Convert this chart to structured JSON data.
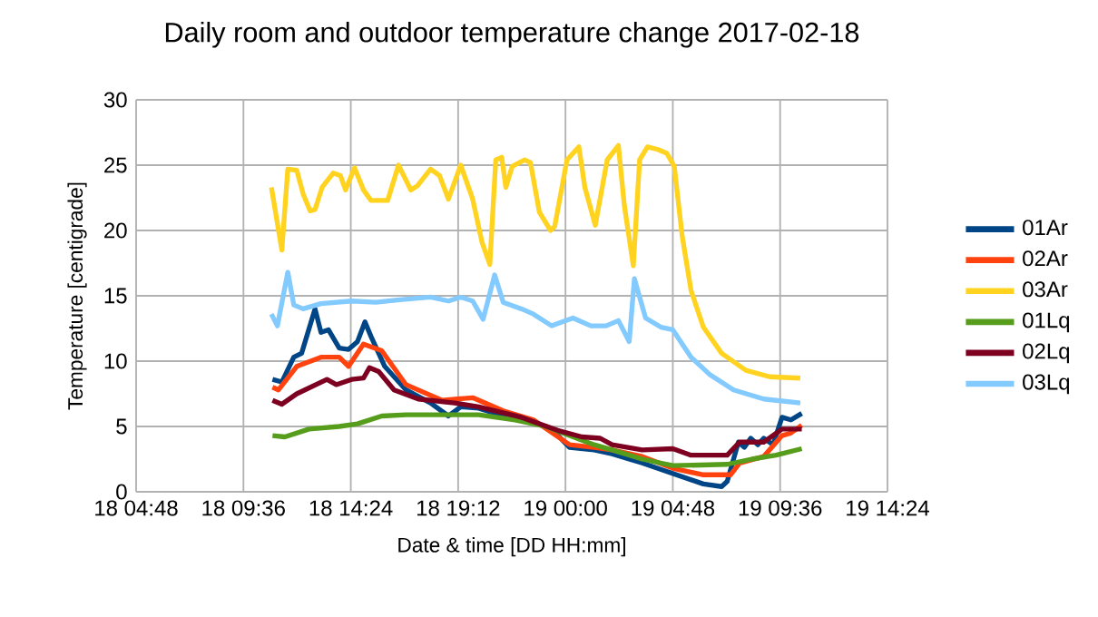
{
  "chart_data": {
    "type": "line",
    "title": "Daily room and outdoor temperature change 2017-02-18",
    "xlabel": "Date & time  [DD HH:mm]",
    "ylabel": "Temperature [centigrade]",
    "xlim": [
      "2017-02-18T04:48",
      "2017-02-19T14:24"
    ],
    "xticks": [
      {
        "value": "2017-02-18T04:48",
        "label": "18 04:48"
      },
      {
        "value": "2017-02-18T09:36",
        "label": "18 09:36"
      },
      {
        "value": "2017-02-18T14:24",
        "label": "18 14:24"
      },
      {
        "value": "2017-02-18T19:12",
        "label": "18 19:12"
      },
      {
        "value": "2017-02-19T00:00",
        "label": "19 00:00"
      },
      {
        "value": "2017-02-19T04:48",
        "label": "19 04:48"
      },
      {
        "value": "2017-02-19T09:36",
        "label": "19 09:36"
      },
      {
        "value": "2017-02-19T14:24",
        "label": "19 14:24"
      }
    ],
    "ylim": [
      0,
      30
    ],
    "yticks": [
      0,
      5,
      10,
      15,
      20,
      25,
      30
    ],
    "grid": true,
    "legend": "right",
    "series": [
      {
        "name": "01Ar",
        "color": "#004586",
        "x": [
          "2017-02-18T10:54",
          "2017-02-18T11:19",
          "2017-02-18T11:51",
          "2017-02-18T12:12",
          "2017-02-18T12:48",
          "2017-02-18T13:04",
          "2017-02-18T13:24",
          "2017-02-18T13:53",
          "2017-02-18T14:18",
          "2017-02-18T14:42",
          "2017-02-18T15:02",
          "2017-02-18T15:18",
          "2017-02-18T15:55",
          "2017-02-18T16:52",
          "2017-02-18T17:58",
          "2017-02-18T18:46",
          "2017-02-18T19:19",
          "2017-02-18T20:07",
          "2017-02-18T21:13",
          "2017-02-18T22:17",
          "2017-02-18T23:23",
          "2017-02-19T00:11",
          "2017-02-19T01:17",
          "2017-02-19T02:05",
          "2017-02-19T03:26",
          "2017-02-19T04:48",
          "2017-02-19T06:10",
          "2017-02-19T06:59",
          "2017-02-19T07:14",
          "2017-02-19T07:44",
          "2017-02-19T08:00",
          "2017-02-19T08:17",
          "2017-02-19T08:36",
          "2017-02-19T08:52",
          "2017-02-19T09:17",
          "2017-02-19T09:41",
          "2017-02-19T10:05",
          "2017-02-19T10:34"
        ],
        "values": [
          8.6,
          8.4,
          10.3,
          10.6,
          14.0,
          12.2,
          12.4,
          11.0,
          10.9,
          11.5,
          13.0,
          11.9,
          9.6,
          7.8,
          6.8,
          5.8,
          6.5,
          6.4,
          5.8,
          5.5,
          4.8,
          3.4,
          3.2,
          2.9,
          2.2,
          1.4,
          0.6,
          0.4,
          0.8,
          3.8,
          3.4,
          4.1,
          3.6,
          4.1,
          3.6,
          5.7,
          5.5,
          6.0
        ]
      },
      {
        "name": "02Ar",
        "color": "#ff420e",
        "x": [
          "2017-02-18T10:54",
          "2017-02-18T11:10",
          "2017-02-18T11:59",
          "2017-02-18T13:04",
          "2017-02-18T13:53",
          "2017-02-18T14:18",
          "2017-02-18T14:58",
          "2017-02-18T15:47",
          "2017-02-18T16:52",
          "2017-02-18T18:29",
          "2017-02-18T19:51",
          "2017-02-18T21:13",
          "2017-02-18T22:34",
          "2017-02-19T00:11",
          "2017-02-19T01:17",
          "2017-02-19T02:05",
          "2017-02-19T03:26",
          "2017-02-19T04:48",
          "2017-02-19T06:10",
          "2017-02-19T07:23",
          "2017-02-19T07:47",
          "2017-02-19T08:52",
          "2017-02-19T09:41",
          "2017-02-19T10:05",
          "2017-02-19T10:34"
        ],
        "values": [
          8.0,
          7.8,
          9.6,
          10.3,
          10.3,
          9.6,
          11.3,
          10.8,
          8.2,
          7.0,
          7.2,
          6.2,
          5.5,
          3.6,
          3.4,
          3.2,
          2.7,
          1.8,
          1.3,
          1.3,
          2.2,
          2.7,
          4.3,
          4.5,
          5.1
        ]
      },
      {
        "name": "03Ar",
        "color": "#ffd320",
        "x": [
          "2017-02-18T10:51",
          "2017-02-18T11:19",
          "2017-02-18T11:35",
          "2017-02-18T11:59",
          "2017-02-18T12:16",
          "2017-02-18T12:35",
          "2017-02-18T12:48",
          "2017-02-18T13:07",
          "2017-02-18T13:37",
          "2017-02-18T13:56",
          "2017-02-18T14:10",
          "2017-02-18T14:34",
          "2017-02-18T14:58",
          "2017-02-18T15:18",
          "2017-02-18T16:03",
          "2017-02-18T16:32",
          "2017-02-18T17:05",
          "2017-02-18T17:22",
          "2017-02-18T17:58",
          "2017-02-18T18:22",
          "2017-02-18T18:46",
          "2017-02-18T19:19",
          "2017-02-18T19:51",
          "2017-02-18T20:16",
          "2017-02-18T20:37",
          "2017-02-18T20:53",
          "2017-02-18T21:09",
          "2017-02-18T21:20",
          "2017-02-18T21:37",
          "2017-02-18T22:10",
          "2017-02-18T22:26",
          "2017-02-18T22:50",
          "2017-02-18T23:20",
          "2017-02-18T23:31",
          "2017-02-19T00:04",
          "2017-02-19T00:36",
          "2017-02-19T00:52",
          "2017-02-19T01:20",
          "2017-02-19T01:52",
          "2017-02-19T02:22",
          "2017-02-19T02:38",
          "2017-02-19T03:02",
          "2017-02-19T03:19",
          "2017-02-19T03:40",
          "2017-02-19T04:08",
          "2017-02-19T04:32",
          "2017-02-19T04:52",
          "2017-02-19T05:13",
          "2017-02-19T05:37",
          "2017-02-19T06:10",
          "2017-02-19T06:59",
          "2017-02-19T08:04",
          "2017-02-19T09:08",
          "2017-02-19T10:30"
        ],
        "values": [
          23.3,
          18.5,
          24.7,
          24.6,
          22.8,
          21.5,
          21.6,
          23.3,
          24.4,
          24.2,
          23.1,
          24.8,
          23.1,
          22.3,
          22.3,
          25.0,
          23.1,
          23.4,
          24.7,
          24.2,
          22.4,
          25.0,
          22.4,
          19.1,
          17.4,
          25.4,
          25.6,
          23.3,
          24.9,
          25.4,
          25.2,
          21.4,
          20.0,
          20.3,
          25.4,
          26.4,
          23.3,
          20.4,
          25.4,
          26.5,
          21.9,
          17.3,
          25.4,
          26.4,
          26.2,
          25.9,
          24.9,
          19.6,
          15.4,
          12.6,
          10.6,
          9.3,
          8.8,
          8.7
        ]
      },
      {
        "name": "01Lq",
        "color": "#579d1c",
        "x": [
          "2017-02-18T10:54",
          "2017-02-18T11:27",
          "2017-02-18T12:32",
          "2017-02-18T13:53",
          "2017-02-18T14:42",
          "2017-02-18T15:47",
          "2017-02-18T16:52",
          "2017-02-18T18:46",
          "2017-02-18T20:07",
          "2017-02-18T21:45",
          "2017-02-18T23:07",
          "2017-02-19T00:11",
          "2017-02-19T01:17",
          "2017-02-19T02:05",
          "2017-02-19T03:26",
          "2017-02-19T04:48",
          "2017-02-19T07:14",
          "2017-02-19T08:20",
          "2017-02-19T09:25",
          "2017-02-19T10:34"
        ],
        "values": [
          4.3,
          4.2,
          4.8,
          5.0,
          5.2,
          5.8,
          5.9,
          5.9,
          5.9,
          5.5,
          5.0,
          4.3,
          3.6,
          3.2,
          2.5,
          2.0,
          2.1,
          2.5,
          2.8,
          3.3
        ]
      },
      {
        "name": "02Lq",
        "color": "#7e0021",
        "x": [
          "2017-02-18T10:54",
          "2017-02-18T11:19",
          "2017-02-18T11:59",
          "2017-02-18T13:20",
          "2017-02-18T13:45",
          "2017-02-18T14:26",
          "2017-02-18T14:58",
          "2017-02-18T15:14",
          "2017-02-18T15:39",
          "2017-02-18T16:20",
          "2017-02-18T17:25",
          "2017-02-18T19:02",
          "2017-02-18T20:07",
          "2017-02-18T22:02",
          "2017-02-18T23:39",
          "2017-02-19T00:44",
          "2017-02-19T01:33",
          "2017-02-19T02:05",
          "2017-02-19T03:26",
          "2017-02-19T04:48",
          "2017-02-19T05:37",
          "2017-02-19T07:14",
          "2017-02-19T07:47",
          "2017-02-19T08:52",
          "2017-02-19T09:41",
          "2017-02-19T10:34"
        ],
        "values": [
          7.0,
          6.7,
          7.5,
          8.6,
          8.2,
          8.6,
          8.7,
          9.5,
          9.2,
          7.8,
          7.1,
          6.8,
          6.5,
          5.7,
          4.7,
          4.2,
          4.1,
          3.6,
          3.2,
          3.3,
          2.8,
          2.8,
          3.8,
          3.8,
          4.8,
          4.8
        ]
      },
      {
        "name": "03Lq",
        "color": "#83caff",
        "x": [
          "2017-02-18T10:51",
          "2017-02-18T11:07",
          "2017-02-18T11:35",
          "2017-02-18T11:51",
          "2017-02-18T12:16",
          "2017-02-18T13:04",
          "2017-02-18T14:26",
          "2017-02-18T15:31",
          "2017-02-18T16:36",
          "2017-02-18T17:58",
          "2017-02-18T18:46",
          "2017-02-18T19:19",
          "2017-02-18T19:51",
          "2017-02-18T20:19",
          "2017-02-18T20:50",
          "2017-02-18T21:13",
          "2017-02-18T22:02",
          "2017-02-18T22:34",
          "2017-02-18T23:23",
          "2017-02-19T00:20",
          "2017-02-19T01:08",
          "2017-02-19T01:49",
          "2017-02-19T02:22",
          "2017-02-19T02:51",
          "2017-02-19T03:05",
          "2017-02-19T03:35",
          "2017-02-19T04:16",
          "2017-02-19T04:48",
          "2017-02-19T05:37",
          "2017-02-19T06:26",
          "2017-02-19T07:31",
          "2017-02-19T08:52",
          "2017-02-19T10:30"
        ],
        "values": [
          13.6,
          12.7,
          16.8,
          14.3,
          14.0,
          14.4,
          14.6,
          14.5,
          14.7,
          14.9,
          14.6,
          14.9,
          14.6,
          13.2,
          16.6,
          14.5,
          14.0,
          13.6,
          12.7,
          13.3,
          12.7,
          12.7,
          13.1,
          11.5,
          16.3,
          13.3,
          12.6,
          12.4,
          10.3,
          9.0,
          7.8,
          7.1,
          6.8
        ]
      }
    ]
  }
}
